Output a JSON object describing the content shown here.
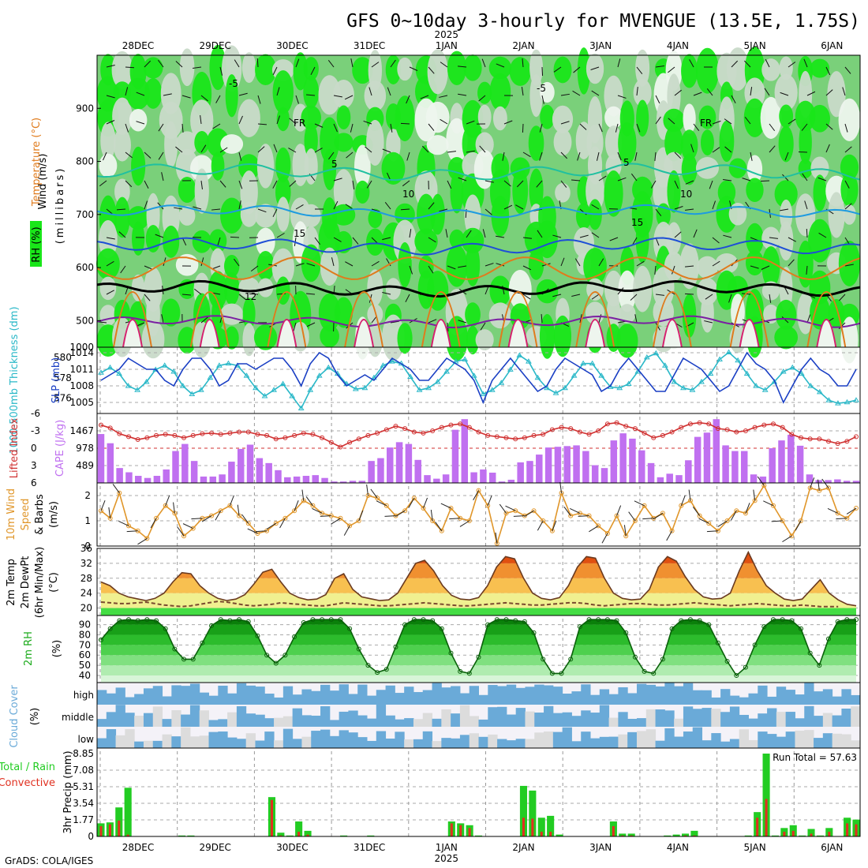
{
  "title": "GFS 0~10day 3-hourly for MVENGUE (13.5E, 1.75S)",
  "credit": "GrADS: COLA/IGES",
  "time_axis": {
    "year": "2025",
    "dates": [
      "28DEC",
      "29DEC",
      "30DEC",
      "31DEC",
      "1JAN",
      "2JAN",
      "3JAN",
      "4JAN",
      "5JAN",
      "6JAN"
    ],
    "year_under_date": "1JAN"
  },
  "colors": {
    "rh_light": "#c9dac9",
    "rh_mid": "#7ad07a",
    "rh_dark": "#19e619",
    "rh_white": "#eef5ee",
    "sounding_temp": [
      "#7b1fa2",
      "#000000",
      "#1e4fd6",
      "#1e9be0",
      "#20c0a0",
      "#e07b1c",
      "#d6206e"
    ],
    "slp": "#1a3fc4",
    "thickness": "#2ab8c8",
    "li": "#d03030",
    "cape": "#c070f0",
    "wind10": "#e0962a",
    "t2m": "#e05a10",
    "dewpt": "#7a4a30",
    "rh2m": "#1aaa1a",
    "cloud": "#6aaad8",
    "precip_total": "#22cc22",
    "precip_conv": "#e03020"
  },
  "panels": {
    "upper_air": {
      "ylabel_wind": "Wind (m/s)",
      "ylabel_temp": "Temperature (°C)",
      "ylabel_rh": "RH (%)",
      "ylabel_p": "(millibars)",
      "yticks": [
        "500",
        "600",
        "700",
        "800",
        "900"
      ],
      "ybottom": "1000",
      "contour_labels": [
        "-5",
        "-5",
        "FR",
        "FR",
        "5",
        "5",
        "10",
        "10",
        "15",
        "15",
        "12"
      ]
    },
    "slp_thick": {
      "ylabel_thick": "1000-500mb Thickness (dm)",
      "ylabel_slp": "SLP (mb)",
      "left_ticks": [
        "580",
        "578",
        "576"
      ],
      "right_ticks": [
        "1014",
        "1011",
        "1008",
        "1005"
      ]
    },
    "cape_li": {
      "ylabel_li": "Lifted Index",
      "ylabel_cape": "CAPE (J/kg)",
      "left_ticks": [
        "-6",
        "-3",
        "0",
        "3",
        "6"
      ],
      "right_ticks": [
        "1467",
        "978",
        "489"
      ]
    },
    "wind10": {
      "ylabel_1": "10m Wind",
      "ylabel_2": "Speed",
      "ylabel_3": "& Barbs",
      "ylabel_4": "(m/s)",
      "yticks": [
        "2",
        "1",
        "0"
      ]
    },
    "temp2m": {
      "ylabel_1": "2m Temp",
      "ylabel_2": "2m DewPt",
      "ylabel_3": "(6hr Min/Max)",
      "ylabel_4": "(°C)",
      "yticks": [
        "36",
        "32",
        "28",
        "24",
        "20"
      ]
    },
    "rh2m": {
      "ylabel_1": "2m RH",
      "ylabel_2": "(%)",
      "yticks": [
        "90",
        "80",
        "70",
        "60",
        "50",
        "40"
      ]
    },
    "cloud": {
      "ylabel_1": "Cloud Cover",
      "ylabel_2": "(%)",
      "levels": [
        "high",
        "middle",
        "low"
      ]
    },
    "precip": {
      "ylabel_1": "Total / Rain",
      "ylabel_2": "Convective",
      "ylabel_3": "3hr Precip (mm)",
      "yticks": [
        "8.85",
        "7.08",
        "5.31",
        "3.54",
        "1.77",
        "0"
      ],
      "run_total": "Run Total = 57.63"
    }
  },
  "chart_data": [
    {
      "type": "heatmap",
      "name": "upper_air",
      "ylim": [
        450,
        1000
      ],
      "contours": [
        {
          "label": "-5",
          "base": 498,
          "amp": 7
        },
        {
          "label": "FR",
          "base": 560,
          "amp": 9
        },
        {
          "label": "5",
          "base": 640,
          "amp": 10
        },
        {
          "label": "10",
          "base": 705,
          "amp": 8
        },
        {
          "label": "15",
          "base": 780,
          "amp": 10
        }
      ]
    },
    {
      "type": "line",
      "name": "slp_thick",
      "slp_ylim": [
        1003,
        1015
      ],
      "slp": [
        1009,
        1010,
        1011,
        1013,
        1012,
        1011,
        1011,
        1009,
        1008,
        1011,
        1013,
        1013,
        1011,
        1008,
        1009,
        1012,
        1012,
        1011,
        1012,
        1013,
        1013,
        1011,
        1008,
        1012,
        1014,
        1013,
        1010,
        1008,
        1009,
        1010,
        1009,
        1011,
        1013,
        1012,
        1011,
        1009,
        1009,
        1011,
        1013,
        1012,
        1011,
        1009,
        1005,
        1009,
        1011,
        1013,
        1011,
        1009,
        1007,
        1008,
        1011,
        1013,
        1012,
        1011,
        1010,
        1007,
        1008,
        1011,
        1013,
        1011,
        1009,
        1007,
        1007,
        1010,
        1013,
        1012,
        1011,
        1009,
        1007,
        1008,
        1011,
        1014,
        1012,
        1011,
        1009,
        1005,
        1008,
        1011,
        1013,
        1011,
        1010,
        1008,
        1008,
        1011
      ],
      "thick_ylim": [
        574.5,
        581
      ],
      "thickness": [
        578.5,
        579,
        578.4,
        577.2,
        576.8,
        577.6,
        578.8,
        579.2,
        578.6,
        577.2,
        576.4,
        576.8,
        578,
        579.2,
        579.4,
        579.2,
        578.2,
        577,
        576.2,
        576.8,
        577.4,
        576.2,
        575,
        576.8,
        578.2,
        579,
        578.4,
        577.4,
        576.9,
        577,
        578,
        579.2,
        579.6,
        579.4,
        578.1,
        576.8,
        577,
        577.6,
        578.6,
        579.6,
        579.8,
        578.2,
        576.4,
        576.8,
        577.5,
        578.8,
        580.2,
        579.6,
        578,
        577,
        576.5,
        577,
        578.2,
        579.4,
        579.4,
        578.2,
        577.1,
        577,
        577.4,
        578.6,
        580,
        580.4,
        579.2,
        577.6,
        577,
        576.8,
        577.6,
        578.4,
        579.8,
        580.5,
        579.7,
        578.4,
        577.2,
        576.8,
        577.6,
        578.6,
        579,
        578.4,
        577.2,
        576.6,
        575.8,
        575.5,
        575.6,
        575.8
      ]
    },
    {
      "type": "bar",
      "name": "cape_li",
      "cape_ylim": [
        0,
        1960
      ],
      "cape": [
        1380,
        1120,
        420,
        300,
        200,
        140,
        200,
        380,
        900,
        1100,
        620,
        180,
        180,
        240,
        600,
        960,
        1080,
        700,
        560,
        360,
        160,
        180,
        200,
        220,
        140,
        40,
        40,
        60,
        60,
        620,
        700,
        1000,
        1150,
        1100,
        650,
        220,
        120,
        240,
        1500,
        1800,
        300,
        380,
        290,
        40,
        90,
        580,
        620,
        800,
        1000,
        1020,
        1040,
        1060,
        900,
        500,
        420,
        1200,
        1400,
        1250,
        920,
        560,
        160,
        260,
        220,
        640,
        1300,
        1420,
        1800,
        1060,
        900,
        900,
        240,
        180,
        980,
        1200,
        1360,
        1050,
        240,
        80,
        80,
        100,
        60,
        60
      ],
      "li_ylim": [
        6,
        -6
      ],
      "li": [
        -4,
        -3.5,
        -2.5,
        -2,
        -1.5,
        -1.8,
        -2.2,
        -2.4,
        -2.2,
        -1.8,
        -2.2,
        -2.5,
        -2.6,
        -2.4,
        -2.6,
        -2.8,
        -2.8,
        -2.4,
        -2.2,
        -1.6,
        -1.8,
        -2.2,
        -2.6,
        -2.4,
        -1.8,
        -1,
        -0.2,
        -1,
        -1.6,
        -2.2,
        -2.6,
        -3.2,
        -3.8,
        -3.4,
        -2.8,
        -2.6,
        -3,
        -3.6,
        -4,
        -4.2,
        -3.6,
        -2.8,
        -2.2,
        -2,
        -1.8,
        -1.6,
        -1.8,
        -2.2,
        -2.4,
        -3.2,
        -3.6,
        -3.4,
        -2.8,
        -2.4,
        -3,
        -4.2,
        -4.4,
        -3.8,
        -3.4,
        -2.6,
        -1.8,
        -2.2,
        -2.8,
        -3.6,
        -4.2,
        -4.4,
        -4.2,
        -3.4,
        -3.2,
        -2.8,
        -3,
        -3.6,
        -4,
        -4.2,
        -3.6,
        -2.4,
        -1.8,
        -1.6,
        -1.6,
        -1.2,
        -0.8,
        -1.2,
        -2
      ]
    },
    {
      "type": "line",
      "name": "wind10",
      "ylim": [
        0,
        2.5
      ],
      "speed": [
        1.4,
        1.1,
        2.1,
        0.8,
        0.6,
        0.3,
        1.1,
        1.6,
        1.3,
        0.4,
        0.7,
        1.1,
        1.2,
        1.4,
        1.6,
        1.2,
        0.9,
        0.5,
        0.6,
        0.9,
        1.1,
        1.4,
        1.8,
        1.6,
        1.3,
        1.2,
        1.1,
        0.8,
        1.0,
        2.0,
        1.9,
        1.6,
        1.2,
        1.4,
        1.9,
        1.5,
        1.0,
        0.6,
        1.5,
        1.1,
        1.0,
        2.2,
        1.6,
        0.1,
        1.3,
        1.4,
        1.2,
        1.4,
        1.0,
        0.6,
        2.1,
        1.2,
        1.3,
        1.2,
        0.8,
        0.5,
        1.2,
        0.4,
        1.0,
        1.6,
        1.1,
        1.3,
        0.6,
        1.6,
        1.8,
        1.2,
        0.9,
        0.6,
        1.0,
        1.4,
        1.3,
        1.8,
        2.4,
        1.6,
        1.0,
        0.4,
        1.0,
        2.3,
        2.2,
        2.3,
        1.3,
        1.1,
        1.5
      ],
      "barbs": true
    },
    {
      "type": "area",
      "name": "temp2m",
      "ylim": [
        18,
        36
      ],
      "t2m": [
        27,
        26,
        24,
        23,
        22.5,
        22,
        22.6,
        24,
        27,
        29.5,
        29.2,
        26,
        24,
        22.6,
        22,
        22.4,
        23.6,
        26.4,
        29.6,
        30.4,
        27,
        24,
        22.8,
        22.2,
        22.4,
        23.6,
        28,
        29.2,
        25,
        23,
        22.5,
        22,
        22.2,
        24,
        28,
        32,
        32.8,
        30,
        26,
        23.4,
        22.4,
        22.2,
        22.8,
        26,
        31,
        33.8,
        33.2,
        28,
        24,
        22.6,
        22.2,
        22.8,
        26,
        31,
        33.8,
        33.4,
        28,
        24,
        22.6,
        22.2,
        22.4,
        25,
        31,
        33.8,
        32.6,
        28.4,
        25,
        23,
        22.4,
        22.6,
        24,
        30,
        35,
        30,
        26,
        24,
        22.4,
        22,
        22.4,
        25,
        27.6,
        24,
        22.2,
        21,
        20.6
      ],
      "dewpt": [
        21.6,
        21.4,
        21.2,
        21.2,
        21.4,
        21.6,
        21.2,
        20.8,
        20.6,
        20.4,
        20.6,
        21,
        21.4,
        21.8,
        21.6,
        21.2,
        20.8,
        20.6,
        20.8,
        21,
        21.4,
        21.2,
        21,
        20.8,
        20.6,
        20.6,
        21,
        21.4,
        21.2,
        21,
        20.8,
        20.6,
        20.6,
        20.8,
        21,
        21.2,
        21.4,
        21.2,
        21,
        20.8,
        20.6,
        20.6,
        20.8,
        21,
        21.2,
        21.4,
        21.2,
        21,
        20.8,
        20.8,
        21,
        21.2,
        21.4,
        21.4,
        21.2,
        20.8,
        20.6,
        20.8,
        21,
        21.2,
        21.2,
        21,
        20.8,
        20.8,
        21,
        21.2,
        21.4,
        21.2,
        21,
        20.8,
        20.6,
        20.8,
        21,
        21.2,
        21,
        20.8,
        20.6,
        20.6,
        20.8,
        20.6,
        20.4,
        20.4,
        20.4
      ]
    },
    {
      "type": "area",
      "name": "rh2m",
      "ylim": [
        33,
        99
      ],
      "rh": [
        75,
        86,
        94,
        95,
        94,
        95,
        94,
        86,
        66,
        56,
        56,
        72,
        89,
        95,
        94,
        95,
        93,
        79,
        60,
        52,
        60,
        78,
        92,
        95,
        95,
        95,
        95,
        86,
        66,
        50,
        43,
        46,
        68,
        90,
        95,
        95,
        94,
        86,
        62,
        44,
        42,
        58,
        90,
        95,
        95,
        94,
        93,
        82,
        56,
        42,
        42,
        56,
        88,
        95,
        95,
        95,
        94,
        82,
        58,
        44,
        42,
        56,
        86,
        94,
        95,
        94,
        90,
        72,
        54,
        40,
        48,
        70,
        88,
        95,
        95,
        94,
        86,
        62,
        50,
        76,
        93,
        95,
        95
      ]
    },
    {
      "type": "heatmap",
      "name": "cloud",
      "note": "high, middle, low cloud cover bands across forecast time"
    },
    {
      "type": "bar",
      "name": "precip",
      "ylim": [
        0,
        8.85
      ],
      "total": [
        1.4,
        1.5,
        3.1,
        5.2,
        0,
        0,
        0,
        0,
        0,
        0.1,
        0.1,
        0,
        0,
        0,
        0,
        0,
        0,
        0,
        0,
        4.2,
        0.4,
        0.1,
        1.6,
        0.6,
        0,
        0,
        0,
        0.1,
        0,
        0,
        0.1,
        0,
        0,
        0,
        0,
        0,
        0,
        0,
        0,
        1.6,
        1.4,
        1.2,
        0.1,
        0,
        0,
        0,
        0,
        5.4,
        4.9,
        2.0,
        2.2,
        0.2,
        0,
        0,
        0,
        0,
        0,
        1.6,
        0.3,
        0.3,
        0,
        0,
        0,
        0.1,
        0.2,
        0.3,
        0.6,
        0,
        0,
        0,
        0,
        0,
        0.1,
        2.6,
        8.85,
        0.1,
        0.9,
        1.2,
        0.1,
        0.8,
        0.1,
        0.9,
        0,
        2.0,
        1.8
      ],
      "convective": [
        1.1,
        1.3,
        1.7,
        0.2,
        0,
        0,
        0,
        0,
        0,
        0,
        0,
        0,
        0,
        0,
        0,
        0,
        0,
        0,
        0,
        3.9,
        0.1,
        0,
        0.5,
        0.2,
        0,
        0,
        0,
        0,
        0,
        0,
        0,
        0,
        0,
        0,
        0,
        0,
        0,
        0,
        0,
        1.4,
        1.2,
        0.9,
        0,
        0,
        0,
        0,
        0,
        2.0,
        1.9,
        0.5,
        0.5,
        0,
        0,
        0,
        0,
        0,
        0,
        1.1,
        0.1,
        0.1,
        0,
        0,
        0,
        0,
        0,
        0.1,
        0.1,
        0,
        0,
        0,
        0,
        0,
        0,
        2.0,
        4.0,
        0,
        0.5,
        0.6,
        0,
        0.3,
        0,
        0.5,
        0,
        1.4,
        1.3
      ]
    }
  ]
}
